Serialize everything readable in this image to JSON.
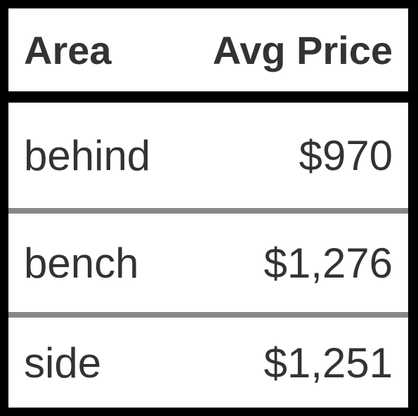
{
  "table": {
    "headers": [
      "Area",
      "Avg Price"
    ],
    "rows": [
      [
        "behind",
        "$970"
      ],
      [
        "bench",
        "$1,276"
      ],
      [
        "side",
        "$1,251"
      ]
    ]
  },
  "colors": {
    "background": "#ffffff",
    "border": "#000000",
    "row_separator": "#888888",
    "text": "#333333"
  }
}
